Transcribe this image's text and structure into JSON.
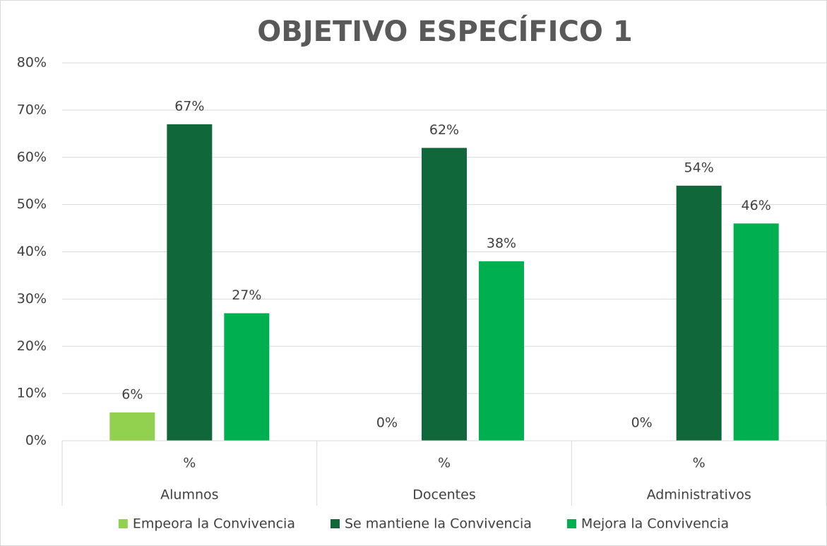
{
  "chart_data": {
    "type": "bar",
    "title": "OBJETIVO ESPECÍFICO 1",
    "categories": [
      "Alumnos",
      "Docentes",
      "Administrativos"
    ],
    "subcategories": [
      "%",
      "%",
      "%"
    ],
    "series": [
      {
        "name": "Empeora la Convivencia",
        "color": "#92d050",
        "values": [
          6,
          0,
          0
        ],
        "value_labels": [
          "6%",
          "0%",
          "0%"
        ]
      },
      {
        "name": "Se mantiene la Convivencia",
        "color": "#10673a",
        "values": [
          67,
          62,
          54
        ],
        "value_labels": [
          "67%",
          "62%",
          "54%"
        ]
      },
      {
        "name": "Mejora la Convivencia",
        "color": "#00b050",
        "values": [
          27,
          38,
          46
        ],
        "value_labels": [
          "27%",
          "38%",
          "46%"
        ]
      }
    ],
    "ylim": [
      0,
      80
    ],
    "yticks": [
      {
        "value": 0,
        "label": "0%"
      },
      {
        "value": 10,
        "label": "10%"
      },
      {
        "value": 20,
        "label": "20%"
      },
      {
        "value": 30,
        "label": "30%"
      },
      {
        "value": 40,
        "label": "40%"
      },
      {
        "value": 50,
        "label": "50%"
      },
      {
        "value": 60,
        "label": "60%"
      },
      {
        "value": 70,
        "label": "70%"
      },
      {
        "value": 80,
        "label": "80%"
      }
    ],
    "grid": true,
    "legend": "bottom"
  }
}
